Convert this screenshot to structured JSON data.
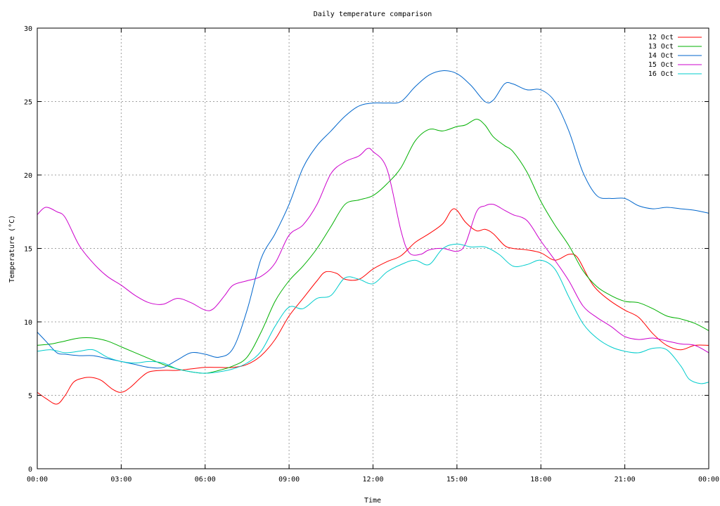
{
  "chart_data": {
    "type": "line",
    "title": "Daily temperature comparison",
    "xlabel": "Time",
    "ylabel": "Temperature (°C)",
    "xlim": [
      0,
      24
    ],
    "ylim": [
      0,
      30
    ],
    "x_ticks": [
      0,
      3,
      6,
      9,
      12,
      15,
      18,
      21,
      24
    ],
    "x_tick_labels": [
      "00:00",
      "03:00",
      "06:00",
      "09:00",
      "12:00",
      "15:00",
      "18:00",
      "21:00",
      "00:00"
    ],
    "y_ticks": [
      0,
      5,
      10,
      15,
      20,
      25,
      30
    ],
    "grid": true,
    "legend_position": "top-right",
    "series": [
      {
        "name": "12 Oct",
        "color": "#ff0000",
        "x": [
          0,
          0.3,
          0.7,
          1.0,
          1.3,
          1.7,
          2.0,
          2.3,
          2.7,
          3.0,
          3.3,
          3.7,
          4.0,
          4.5,
          5.0,
          5.5,
          6.0,
          6.5,
          7.0,
          7.5,
          8.0,
          8.5,
          9.0,
          9.5,
          10.0,
          10.3,
          10.7,
          11.0,
          11.5,
          12.0,
          12.5,
          13.0,
          13.5,
          14.0,
          14.5,
          14.8,
          15.0,
          15.3,
          15.7,
          16.0,
          16.3,
          16.7,
          17.0,
          17.5,
          18.0,
          18.5,
          19.0,
          19.3,
          19.7,
          20.0,
          20.5,
          21.0,
          21.5,
          22.0,
          22.5,
          23.0,
          23.5,
          24.0
        ],
        "y": [
          5.2,
          4.8,
          4.4,
          5.0,
          5.9,
          6.2,
          6.2,
          6.0,
          5.4,
          5.2,
          5.5,
          6.2,
          6.6,
          6.7,
          6.7,
          6.8,
          6.9,
          6.9,
          6.9,
          7.1,
          7.7,
          8.8,
          10.4,
          11.6,
          12.8,
          13.4,
          13.3,
          12.9,
          12.9,
          13.6,
          14.1,
          14.5,
          15.4,
          16.0,
          16.7,
          17.6,
          17.6,
          16.8,
          16.2,
          16.3,
          16.0,
          15.2,
          15.0,
          14.9,
          14.7,
          14.2,
          14.6,
          14.4,
          13.0,
          12.2,
          11.4,
          10.8,
          10.3,
          9.2,
          8.4,
          8.1,
          8.4,
          8.4
        ]
      },
      {
        "name": "13 Oct",
        "color": "#00b000",
        "x": [
          0,
          0.5,
          1.0,
          1.5,
          2.0,
          2.5,
          3.0,
          3.5,
          4.0,
          4.5,
          5.0,
          5.5,
          6.0,
          6.5,
          7.0,
          7.5,
          8.0,
          8.5,
          9.0,
          9.5,
          10.0,
          10.5,
          11.0,
          11.5,
          12.0,
          12.5,
          13.0,
          13.5,
          14.0,
          14.5,
          15.0,
          15.3,
          15.7,
          16.0,
          16.3,
          16.7,
          17.0,
          17.5,
          18.0,
          18.5,
          19.0,
          19.5,
          20.0,
          20.5,
          21.0,
          21.5,
          22.0,
          22.5,
          23.0,
          23.5,
          24.0
        ],
        "y": [
          8.4,
          8.5,
          8.7,
          8.9,
          8.9,
          8.7,
          8.3,
          7.9,
          7.5,
          7.1,
          6.8,
          6.6,
          6.5,
          6.7,
          7.0,
          7.6,
          9.3,
          11.4,
          12.8,
          13.8,
          15.0,
          16.5,
          18.0,
          18.3,
          18.6,
          19.4,
          20.5,
          22.3,
          23.1,
          23.0,
          23.3,
          23.4,
          23.8,
          23.4,
          22.6,
          22.0,
          21.6,
          20.2,
          18.2,
          16.6,
          15.2,
          13.5,
          12.4,
          11.8,
          11.4,
          11.3,
          10.9,
          10.4,
          10.2,
          9.9,
          9.4
        ]
      },
      {
        "name": "14 Oct",
        "color": "#0066cc",
        "x": [
          0,
          0.3,
          0.7,
          1.0,
          1.5,
          2.0,
          2.5,
          3.0,
          3.5,
          4.0,
          4.5,
          5.0,
          5.5,
          6.0,
          6.5,
          7.0,
          7.5,
          8.0,
          8.5,
          9.0,
          9.5,
          10.0,
          10.5,
          11.0,
          11.5,
          12.0,
          12.5,
          13.0,
          13.5,
          14.0,
          14.5,
          15.0,
          15.5,
          16.0,
          16.3,
          16.7,
          17.0,
          17.5,
          18.0,
          18.5,
          19.0,
          19.5,
          20.0,
          20.5,
          21.0,
          21.5,
          22.0,
          22.5,
          23.0,
          23.5,
          24.0
        ],
        "y": [
          9.3,
          8.7,
          7.9,
          7.8,
          7.7,
          7.7,
          7.5,
          7.3,
          7.1,
          6.9,
          6.9,
          7.4,
          7.9,
          7.8,
          7.6,
          8.2,
          10.8,
          14.3,
          16.0,
          18.0,
          20.5,
          22.0,
          23.0,
          24.0,
          24.7,
          24.9,
          24.9,
          25.0,
          26.0,
          26.8,
          27.1,
          26.9,
          26.1,
          25.0,
          25.1,
          26.2,
          26.2,
          25.8,
          25.8,
          25.0,
          23.0,
          20.2,
          18.6,
          18.4,
          18.4,
          17.9,
          17.7,
          17.8,
          17.7,
          17.6,
          17.4
        ]
      },
      {
        "name": "15 Oct",
        "color": "#cc00cc",
        "x": [
          0,
          0.3,
          0.7,
          1.0,
          1.5,
          2.0,
          2.5,
          3.0,
          3.5,
          4.0,
          4.5,
          5.0,
          5.5,
          6.0,
          6.3,
          6.7,
          7.0,
          7.5,
          8.0,
          8.5,
          9.0,
          9.5,
          10.0,
          10.5,
          11.0,
          11.5,
          11.8,
          12.0,
          12.5,
          13.0,
          13.3,
          13.7,
          14.0,
          14.5,
          15.0,
          15.3,
          15.7,
          16.0,
          16.3,
          16.7,
          17.0,
          17.5,
          18.0,
          18.5,
          19.0,
          19.5,
          20.0,
          20.5,
          21.0,
          21.5,
          22.0,
          22.5,
          23.0,
          23.5,
          24.0
        ],
        "y": [
          17.3,
          17.8,
          17.5,
          17.1,
          15.2,
          14.0,
          13.1,
          12.5,
          11.8,
          11.3,
          11.2,
          11.6,
          11.3,
          10.8,
          10.9,
          11.8,
          12.5,
          12.8,
          13.1,
          14.0,
          15.9,
          16.6,
          18.0,
          20.1,
          20.9,
          21.3,
          21.8,
          21.6,
          20.4,
          16.2,
          14.7,
          14.6,
          14.9,
          15.0,
          14.8,
          15.3,
          17.5,
          17.9,
          18.0,
          17.6,
          17.3,
          16.9,
          15.5,
          14.2,
          12.8,
          11.1,
          10.3,
          9.7,
          9.0,
          8.8,
          8.9,
          8.7,
          8.5,
          8.4,
          7.9
        ]
      },
      {
        "name": "16 Oct",
        "color": "#00cccc",
        "x": [
          0,
          0.5,
          1.0,
          1.5,
          2.0,
          2.5,
          3.0,
          3.5,
          4.0,
          4.5,
          5.0,
          5.5,
          6.0,
          6.5,
          7.0,
          7.5,
          8.0,
          8.5,
          9.0,
          9.5,
          10.0,
          10.5,
          11.0,
          11.5,
          12.0,
          12.5,
          13.0,
          13.5,
          14.0,
          14.5,
          15.0,
          15.5,
          16.0,
          16.5,
          17.0,
          17.5,
          18.0,
          18.5,
          19.0,
          19.5,
          20.0,
          20.5,
          21.0,
          21.5,
          22.0,
          22.5,
          23.0,
          23.3,
          23.7,
          24.0
        ],
        "y": [
          8.0,
          8.1,
          7.9,
          8.0,
          8.1,
          7.6,
          7.3,
          7.2,
          7.3,
          7.2,
          6.8,
          6.6,
          6.5,
          6.6,
          6.8,
          7.2,
          8.0,
          9.7,
          11.0,
          10.9,
          11.6,
          11.8,
          13.0,
          12.9,
          12.6,
          13.4,
          13.9,
          14.2,
          13.9,
          15.0,
          15.3,
          15.1,
          15.1,
          14.6,
          13.8,
          13.9,
          14.2,
          13.6,
          11.7,
          9.9,
          8.9,
          8.3,
          8.0,
          7.9,
          8.2,
          8.1,
          7.0,
          6.1,
          5.8,
          5.9
        ]
      }
    ]
  }
}
